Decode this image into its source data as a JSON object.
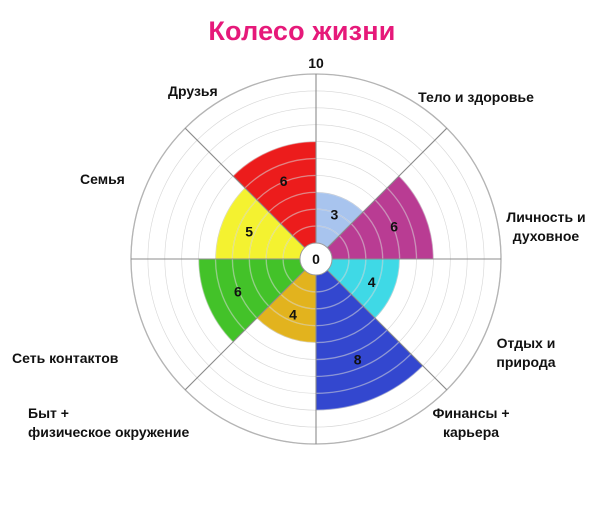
{
  "title": "Колесо жизни",
  "chart_data": {
    "type": "polar-bar",
    "title": "Колесо жизни",
    "rmax": 10,
    "max_label": "10",
    "center_label": "0",
    "grid": true,
    "sectors": [
      {
        "name": "Тело и здоровье",
        "value": 3,
        "color": "#a8c4ee"
      },
      {
        "name": "Личность и духовное",
        "value": 6,
        "color": "#b93c93"
      },
      {
        "name": "Отдых и природа",
        "value": 4,
        "color": "#3fd9e6"
      },
      {
        "name": "Финансы + карьера",
        "value": 8,
        "color": "#3347cf"
      },
      {
        "name": "Быт + физическое окружение",
        "value": 4,
        "color": "#e2b31e"
      },
      {
        "name": "Сеть контактов",
        "value": 6,
        "color": "#43c229"
      },
      {
        "name": "Семья",
        "value": 5,
        "color": "#f4f230"
      },
      {
        "name": "Друзья",
        "value": 6,
        "color": "#ec1c1c"
      }
    ]
  },
  "labels": {
    "body": "Тело и здоровье",
    "personality_1": "Личность и",
    "personality_2": "духовное",
    "rest_1": "Отдых и",
    "rest_2": "природа",
    "finance_1": "Финансы +",
    "finance_2": "карьера",
    "home_1": "Быт +",
    "home_2": "физическое окружение",
    "network": "Сеть контактов",
    "family": "Семья",
    "friends": "Друзья"
  }
}
